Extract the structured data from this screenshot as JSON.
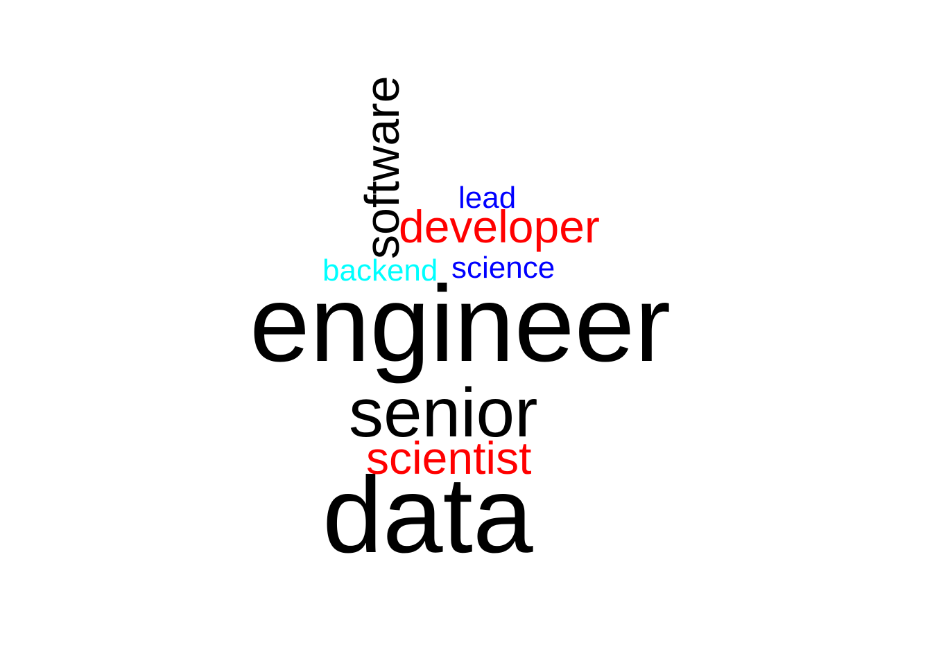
{
  "word_cloud": {
    "words": [
      {
        "id": "engineer",
        "text": "engineer",
        "color": "#000000"
      },
      {
        "id": "data",
        "text": "data",
        "color": "#000000"
      },
      {
        "id": "senior",
        "text": "senior",
        "color": "#000000"
      },
      {
        "id": "developer",
        "text": "developer",
        "color": "#ff0000"
      },
      {
        "id": "scientist",
        "text": "scientist",
        "color": "#ff0000"
      },
      {
        "id": "software",
        "text": "software",
        "color": "#000000",
        "orientation": "vertical"
      },
      {
        "id": "lead",
        "text": "lead",
        "color": "#0000ff"
      },
      {
        "id": "backend",
        "text": "backend",
        "color": "#00ffff"
      },
      {
        "id": "science",
        "text": "science",
        "color": "#0000ff"
      }
    ]
  }
}
